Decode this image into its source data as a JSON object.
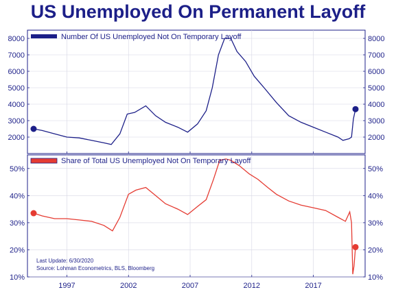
{
  "title": "US Unemployed On Permanent Layoff",
  "note_update": "Last Update: 6/30/2020",
  "note_source": "Source: Lohman Econometrics, BLS, Bloomberg",
  "colors": {
    "title": "#1c1f88",
    "navy": "#1c1f88",
    "red": "#e53b32"
  },
  "chart_data": [
    {
      "type": "line",
      "legend": "Number Of US Unemployed Not On Temporary Layoff",
      "ylim": [
        1000,
        8500
      ],
      "yticks": [
        2000,
        3000,
        4000,
        5000,
        6000,
        7000,
        8000
      ],
      "ytick_labels": [
        "2000",
        "3000",
        "4000",
        "5000",
        "6000",
        "7000",
        "8000"
      ],
      "color": "#1c1f88",
      "x": [
        1994.3,
        1995,
        1996,
        1997,
        1998,
        1999,
        2000,
        2000.6,
        2001.3,
        2001.9,
        2002.5,
        2003.4,
        2004.2,
        2005,
        2006,
        2006.8,
        2007.6,
        2008.3,
        2008.8,
        2009.3,
        2009.8,
        2010.3,
        2010.8,
        2011.5,
        2012.2,
        2013,
        2014,
        2015,
        2016,
        2017,
        2018,
        2019,
        2019.4,
        2019.9,
        2020.1,
        2020.25,
        2020.42
      ],
      "y": [
        2500,
        2400,
        2200,
        2000,
        1950,
        1800,
        1650,
        1550,
        2200,
        3400,
        3500,
        3900,
        3300,
        2900,
        2600,
        2300,
        2800,
        3600,
        5000,
        7000,
        8000,
        8000,
        7200,
        6600,
        5700,
        5000,
        4100,
        3300,
        2900,
        2600,
        2300,
        2000,
        1800,
        1900,
        2000,
        3100,
        3700
      ],
      "end_marker": [
        2020.42,
        3700
      ],
      "start_marker": [
        1994.3,
        2500
      ]
    },
    {
      "type": "line",
      "legend": "Share of Total US Unemployed Not On Temporary Layoff",
      "ylim": [
        10,
        55
      ],
      "yticks": [
        10,
        20,
        30,
        40,
        50
      ],
      "ytick_labels": [
        "10%",
        "20%",
        "30%",
        "40%",
        "50%"
      ],
      "color": "#e53b32",
      "x": [
        1994.3,
        1995,
        1996,
        1997,
        1998,
        1999,
        2000,
        2000.7,
        2001.3,
        2002,
        2002.6,
        2003.4,
        2004.2,
        2005,
        2006,
        2006.8,
        2007.6,
        2008.3,
        2008.9,
        2009.4,
        2009.9,
        2010.3,
        2011,
        2011.8,
        2012.5,
        2013.3,
        2014,
        2015,
        2016,
        2017,
        2018,
        2019,
        2019.6,
        2019.95,
        2020.1,
        2020.2,
        2020.3,
        2020.42
      ],
      "y": [
        33.5,
        32.5,
        31.5,
        31.5,
        31,
        30.5,
        29,
        27,
        32,
        40.5,
        42,
        43,
        40,
        37,
        35,
        33,
        36,
        38.5,
        46,
        53,
        53.5,
        53,
        51,
        48,
        46,
        43,
        40.5,
        38,
        36.5,
        35.5,
        34.5,
        32,
        30.5,
        34,
        30,
        11,
        14,
        21
      ],
      "end_marker": [
        2020.42,
        21
      ],
      "start_marker": [
        1994.3,
        33.5
      ]
    }
  ],
  "x_axis": {
    "xlim": [
      1993.8,
      2021.2
    ],
    "ticks": [
      1997,
      2002,
      2007,
      2012,
      2017
    ],
    "tick_labels": [
      "1997",
      "2002",
      "2007",
      "2012",
      "2017"
    ]
  }
}
